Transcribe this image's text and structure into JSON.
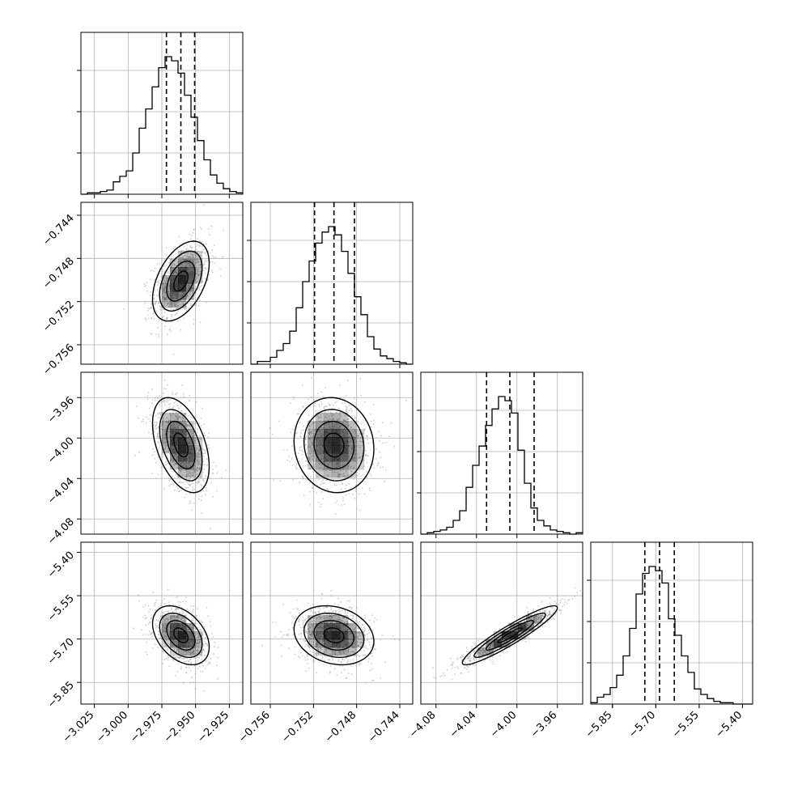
{
  "chart_data": {
    "type": "corner",
    "parameters": [
      {
        "range": [
          -3.035,
          -2.915
        ],
        "ticks": [
          -3.025,
          -3.0,
          -2.975,
          -2.95,
          -2.925
        ],
        "tick_labels": [
          "−3.025",
          "−3.000",
          "−2.975",
          "−2.950",
          "−2.925"
        ]
      },
      {
        "range": [
          -0.7578,
          -0.7428
        ],
        "ticks": [
          -0.756,
          -0.752,
          -0.748,
          -0.744
        ],
        "tick_labels": [
          "−0.756",
          "−0.752",
          "−0.748",
          "−0.744"
        ]
      },
      {
        "range": [
          -4.095,
          -3.935
        ],
        "ticks": [
          -4.08,
          -4.04,
          -4.0,
          -3.96
        ],
        "tick_labels": [
          "−4.08",
          "−4.04",
          "−4.00",
          "−3.96"
        ]
      },
      {
        "range": [
          -5.925,
          -5.365
        ],
        "ticks": [
          -5.85,
          -5.7,
          -5.55,
          -5.4
        ],
        "tick_labels": [
          "−5.85",
          "−5.70",
          "−5.55",
          "−5.40"
        ]
      }
    ],
    "quantiles": [
      [
        -2.9716,
        -2.9609,
        -2.9507
      ],
      [
        -0.7519,
        -0.7501,
        -0.7482
      ],
      [
        -4.03,
        -4.007,
        -3.983
      ],
      [
        -5.738,
        -5.687,
        -5.636
      ]
    ],
    "histograms": [
      {
        "bin_start": -3.035,
        "bin_end": -2.915,
        "counts": [
          0,
          1,
          1,
          2,
          3,
          9,
          13,
          17,
          30,
          48,
          62,
          78,
          92,
          100,
          97,
          88,
          72,
          56,
          39,
          25,
          14,
          8,
          4,
          2,
          1
        ]
      },
      {
        "bin_start": -0.7578,
        "bin_end": -0.7428,
        "counts": [
          0,
          2,
          2,
          5,
          10,
          15,
          24,
          41,
          60,
          75,
          88,
          96,
          100,
          94,
          82,
          66,
          49,
          36,
          20,
          11,
          6,
          4,
          2,
          1,
          0
        ]
      },
      {
        "bin_start": -4.095,
        "bin_end": -3.935,
        "counts": [
          0,
          1,
          2,
          3,
          5,
          10,
          17,
          34,
          50,
          64,
          79,
          91,
          100,
          97,
          88,
          61,
          37,
          19,
          10,
          6,
          3,
          2,
          1,
          0,
          1
        ]
      },
      {
        "bin_start": -5.925,
        "bin_end": -5.365,
        "counts": [
          1,
          5,
          7,
          12,
          21,
          35,
          55,
          80,
          95,
          100,
          97,
          88,
          62,
          50,
          35,
          23,
          11,
          7,
          4,
          2,
          1,
          1,
          0,
          0,
          0
        ]
      }
    ],
    "pairs": [
      {
        "x": 0,
        "y": 1,
        "mean": [
          -2.9609,
          -0.7501
        ],
        "sd": [
          0.0105,
          0.00185
        ],
        "rho": 0.45
      },
      {
        "x": 0,
        "y": 2,
        "mean": [
          -2.9609,
          -4.007
        ],
        "sd": [
          0.0105,
          0.0235
        ],
        "rho": -0.45
      },
      {
        "x": 1,
        "y": 2,
        "mean": [
          -0.7501,
          -4.007
        ],
        "sd": [
          0.00185,
          0.0235
        ],
        "rho": -0.08
      },
      {
        "x": 0,
        "y": 3,
        "mean": [
          -2.9609,
          -5.687
        ],
        "sd": [
          0.0105,
          0.051
        ],
        "rho": -0.4
      },
      {
        "x": 1,
        "y": 3,
        "mean": [
          -0.7501,
          -5.687
        ],
        "sd": [
          0.00185,
          0.051
        ],
        "rho": -0.2
      },
      {
        "x": 2,
        "y": 3,
        "mean": [
          -4.007,
          -5.687
        ],
        "sd": [
          0.0235,
          0.051
        ],
        "rho": 0.93
      }
    ],
    "contour_levels_sigma": [
      0.5,
      1.0,
      1.5,
      2.0
    ],
    "grid": true,
    "colors": {
      "line": "#000000",
      "grid": "#b0b0b0",
      "points": "#9a9a9a",
      "density": "#000000"
    }
  }
}
